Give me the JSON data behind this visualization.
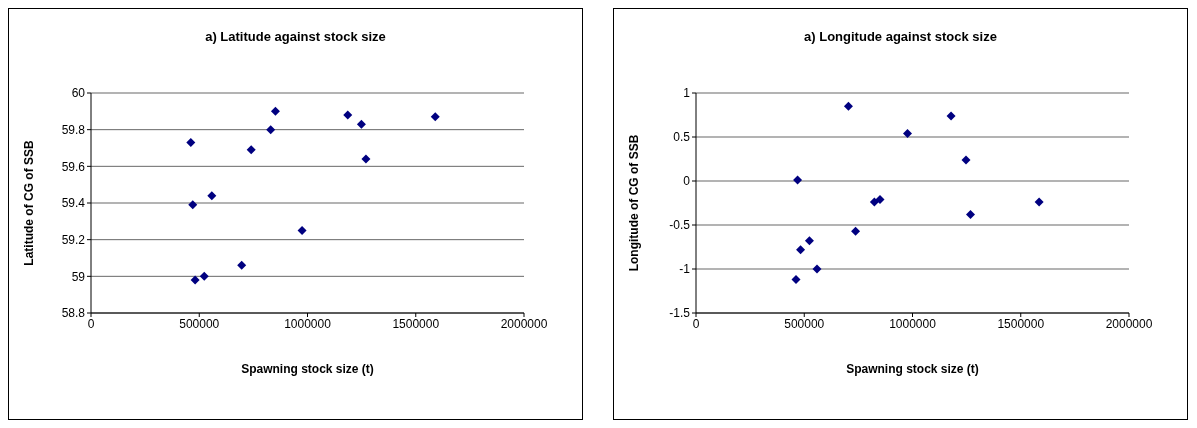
{
  "chart_data": [
    {
      "type": "scatter",
      "title": "a) Latitude against stock size",
      "xlabel": "Spawning stock size (t)",
      "ylabel": "Latitude of CG of SSB",
      "xlim": [
        0,
        2000000
      ],
      "xticks": [
        0,
        500000,
        1000000,
        1500000,
        2000000
      ],
      "ylim": [
        58.8,
        60
      ],
      "yticks": [
        58.8,
        59,
        59.2,
        59.4,
        59.6,
        59.8,
        60
      ],
      "grid": "y",
      "legend": false,
      "marker": "diamond",
      "series": [
        {
          "color": "#000080",
          "x": [
            461000,
            470000,
            481000,
            523000,
            558000,
            696000,
            740000,
            830000,
            852000,
            975000,
            1186000,
            1249000,
            1270000,
            1590000
          ],
          "values": [
            59.73,
            59.39,
            58.98,
            59.0,
            59.44,
            59.06,
            59.69,
            59.8,
            59.9,
            59.25,
            59.88,
            59.83,
            59.64,
            59.87
          ]
        }
      ]
    },
    {
      "type": "scatter",
      "title": "a) Longitude against stock size",
      "xlabel": "Spawning stock size (t)",
      "ylabel": "Longitude of CG of SSB",
      "xlim": [
        0,
        2000000
      ],
      "xticks": [
        0,
        500000,
        1000000,
        1500000,
        2000000
      ],
      "ylim": [
        -1.5,
        1
      ],
      "yticks": [
        -1.5,
        -1,
        -0.5,
        0,
        0.5,
        1
      ],
      "grid": "y",
      "legend": false,
      "marker": "diamond",
      "series": [
        {
          "color": "#000080",
          "x": [
            704000,
            1178000,
            977000,
            1247000,
            469000,
            824000,
            850000,
            1585000,
            1268000,
            737000,
            524000,
            483000,
            559000,
            462000
          ],
          "values": [
            0.85,
            0.74,
            0.54,
            0.24,
            0.01,
            -0.24,
            -0.21,
            -0.24,
            -0.38,
            -0.57,
            -0.68,
            -0.78,
            -1.0,
            -1.12
          ]
        }
      ]
    }
  ]
}
